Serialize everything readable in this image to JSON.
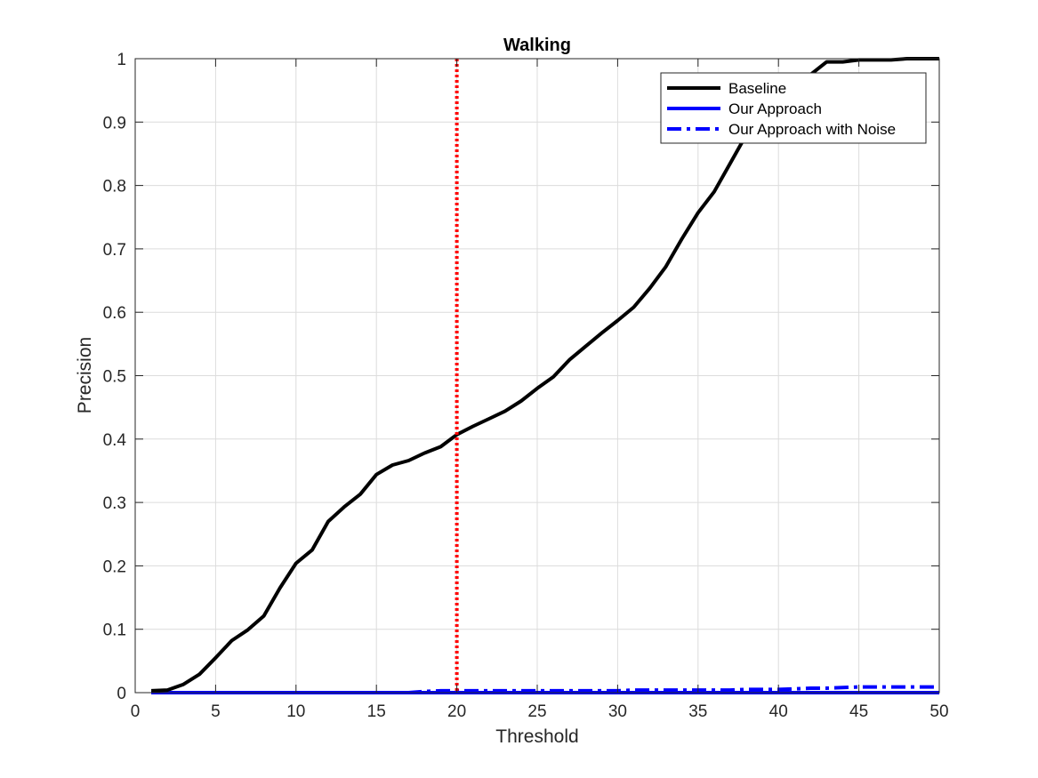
{
  "chart_data": {
    "type": "line",
    "title": "Walking",
    "xlabel": "Threshold",
    "ylabel": "Precision",
    "xlim": [
      0,
      50
    ],
    "ylim": [
      0,
      1
    ],
    "grid": true,
    "legend_position": "top-right",
    "x_ticks": [
      "0",
      "5",
      "10",
      "15",
      "20",
      "25",
      "30",
      "35",
      "40",
      "45",
      "50"
    ],
    "y_ticks": [
      "0",
      "0.1",
      "0.2",
      "0.3",
      "0.4",
      "0.5",
      "0.6",
      "0.7",
      "0.8",
      "0.9",
      "1"
    ],
    "x": [
      1,
      2,
      3,
      4,
      5,
      6,
      7,
      8,
      9,
      10,
      11,
      12,
      13,
      14,
      15,
      16,
      17,
      18,
      19,
      20,
      21,
      22,
      23,
      24,
      25,
      26,
      27,
      28,
      29,
      30,
      31,
      32,
      33,
      34,
      35,
      36,
      37,
      38,
      39,
      40,
      41,
      42,
      43,
      44,
      45,
      46,
      47,
      48,
      49,
      50
    ],
    "series": [
      {
        "name": "Baseline",
        "color": "#000000",
        "style": "solid",
        "values": [
          0.003,
          0.004,
          0.013,
          0.029,
          0.055,
          0.082,
          0.099,
          0.121,
          0.165,
          0.204,
          0.225,
          0.27,
          0.293,
          0.313,
          0.344,
          0.359,
          0.366,
          0.378,
          0.388,
          0.407,
          0.42,
          0.432,
          0.444,
          0.46,
          0.48,
          0.498,
          0.525,
          0.546,
          0.567,
          0.587,
          0.608,
          0.638,
          0.672,
          0.716,
          0.757,
          0.79,
          0.835,
          0.88,
          0.915,
          0.94,
          0.96,
          0.975,
          0.995,
          0.995,
          0.998,
          0.998,
          0.998,
          1.0,
          1.0,
          1.0
        ]
      },
      {
        "name": "Our Approach",
        "color": "#0000ff",
        "style": "solid",
        "values": [
          0,
          0,
          0,
          0,
          0,
          0,
          0,
          0,
          0,
          0,
          0,
          0,
          0,
          0,
          0,
          0,
          0,
          0,
          0,
          0,
          0,
          0,
          0,
          0,
          0,
          0,
          0,
          0,
          0,
          0,
          0,
          0,
          0,
          0,
          0,
          0,
          0,
          0,
          0,
          0,
          0,
          0,
          0,
          0,
          0,
          0,
          0,
          0,
          0,
          0
        ]
      },
      {
        "name": "Our Approach with Noise",
        "color": "#0000ff",
        "style": "dashdot",
        "values": [
          0,
          0,
          0,
          0,
          0,
          0,
          0,
          0,
          0,
          0,
          0,
          0,
          0,
          0,
          0,
          0,
          0,
          0.002,
          0.003,
          0.003,
          0.003,
          0.003,
          0.003,
          0.003,
          0.003,
          0.003,
          0.003,
          0.003,
          0.003,
          0.003,
          0.004,
          0.004,
          0.004,
          0.004,
          0.004,
          0.004,
          0.004,
          0.005,
          0.005,
          0.005,
          0.006,
          0.007,
          0.007,
          0.008,
          0.009,
          0.009,
          0.009,
          0.009,
          0.009,
          0.009
        ]
      }
    ],
    "reference_line": {
      "x": 20,
      "color": "#ff0000",
      "style": "dotted"
    }
  }
}
